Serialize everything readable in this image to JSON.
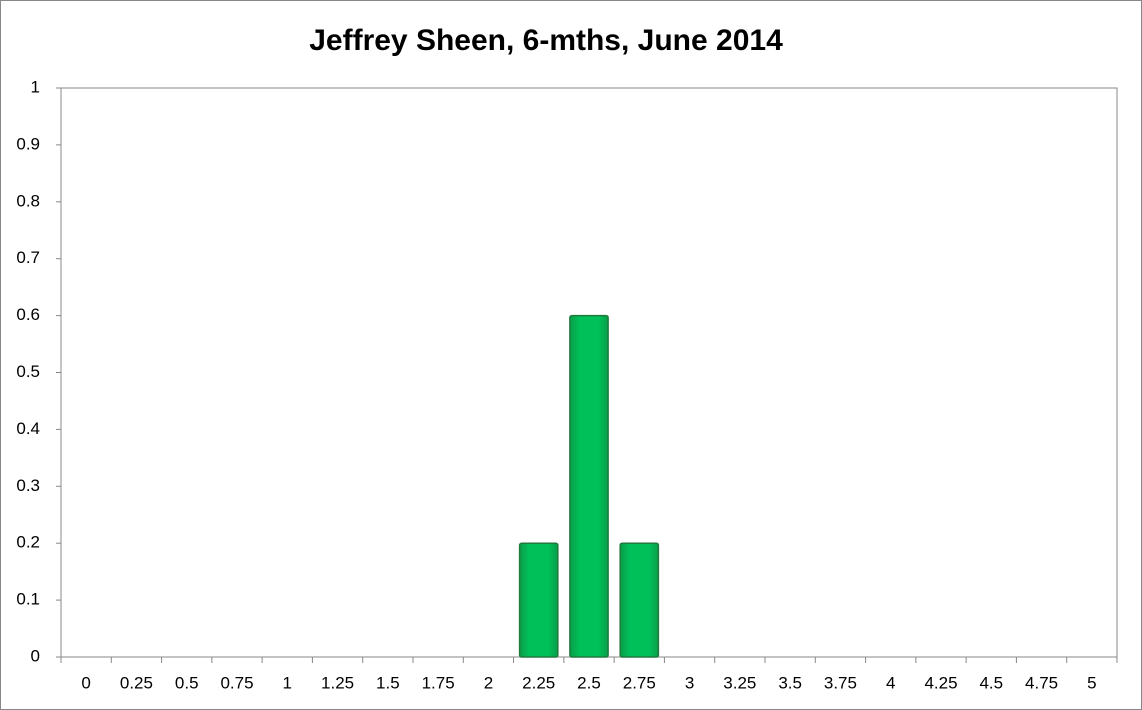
{
  "chart_data": {
    "type": "bar",
    "title": "Jeffrey Sheen, 6-mths, June 2014",
    "categories": [
      "0",
      "0.25",
      "0.5",
      "0.75",
      "1",
      "1.25",
      "1.5",
      "1.75",
      "2",
      "2.25",
      "2.5",
      "2.75",
      "3",
      "3.25",
      "3.5",
      "3.75",
      "4",
      "4.25",
      "4.5",
      "4.75",
      "5"
    ],
    "values": [
      0,
      0,
      0,
      0,
      0,
      0,
      0,
      0,
      0,
      0.2,
      0.6,
      0.2,
      0,
      0,
      0,
      0,
      0,
      0,
      0,
      0,
      0
    ],
    "color": "#00c05a",
    "ylim": [
      0,
      1
    ],
    "yticks": [
      0,
      0.1,
      0.2,
      0.3,
      0.4,
      0.5,
      0.6,
      0.7,
      0.8,
      0.9,
      1
    ],
    "grid": false
  }
}
